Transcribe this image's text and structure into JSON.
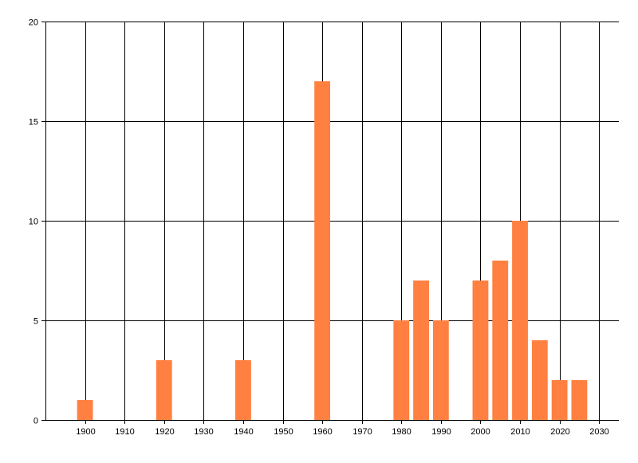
{
  "chart_data": {
    "type": "bar",
    "title": "",
    "xlabel": "",
    "ylabel": "",
    "x": [
      1900,
      1920,
      1940,
      1960,
      1980,
      1985,
      1990,
      2000,
      2005,
      2010,
      2015,
      2020,
      2025
    ],
    "values": [
      1,
      3,
      3,
      17,
      5,
      7,
      5,
      7,
      8,
      10,
      4,
      2,
      2
    ],
    "xlim": [
      1890,
      2035
    ],
    "ylim": [
      0,
      20
    ],
    "xticks": [
      "1900",
      "1910",
      "1920",
      "1930",
      "1940",
      "1950",
      "1960",
      "1970",
      "1980",
      "1990",
      "2000",
      "2010",
      "2020",
      "2030"
    ],
    "yticks": [
      "0",
      "5",
      "10",
      "15",
      "20"
    ],
    "bar_width_years": 4,
    "grid": true,
    "legend": "none",
    "colors": {
      "bar": "#FF8040",
      "grid": "#000000"
    }
  }
}
